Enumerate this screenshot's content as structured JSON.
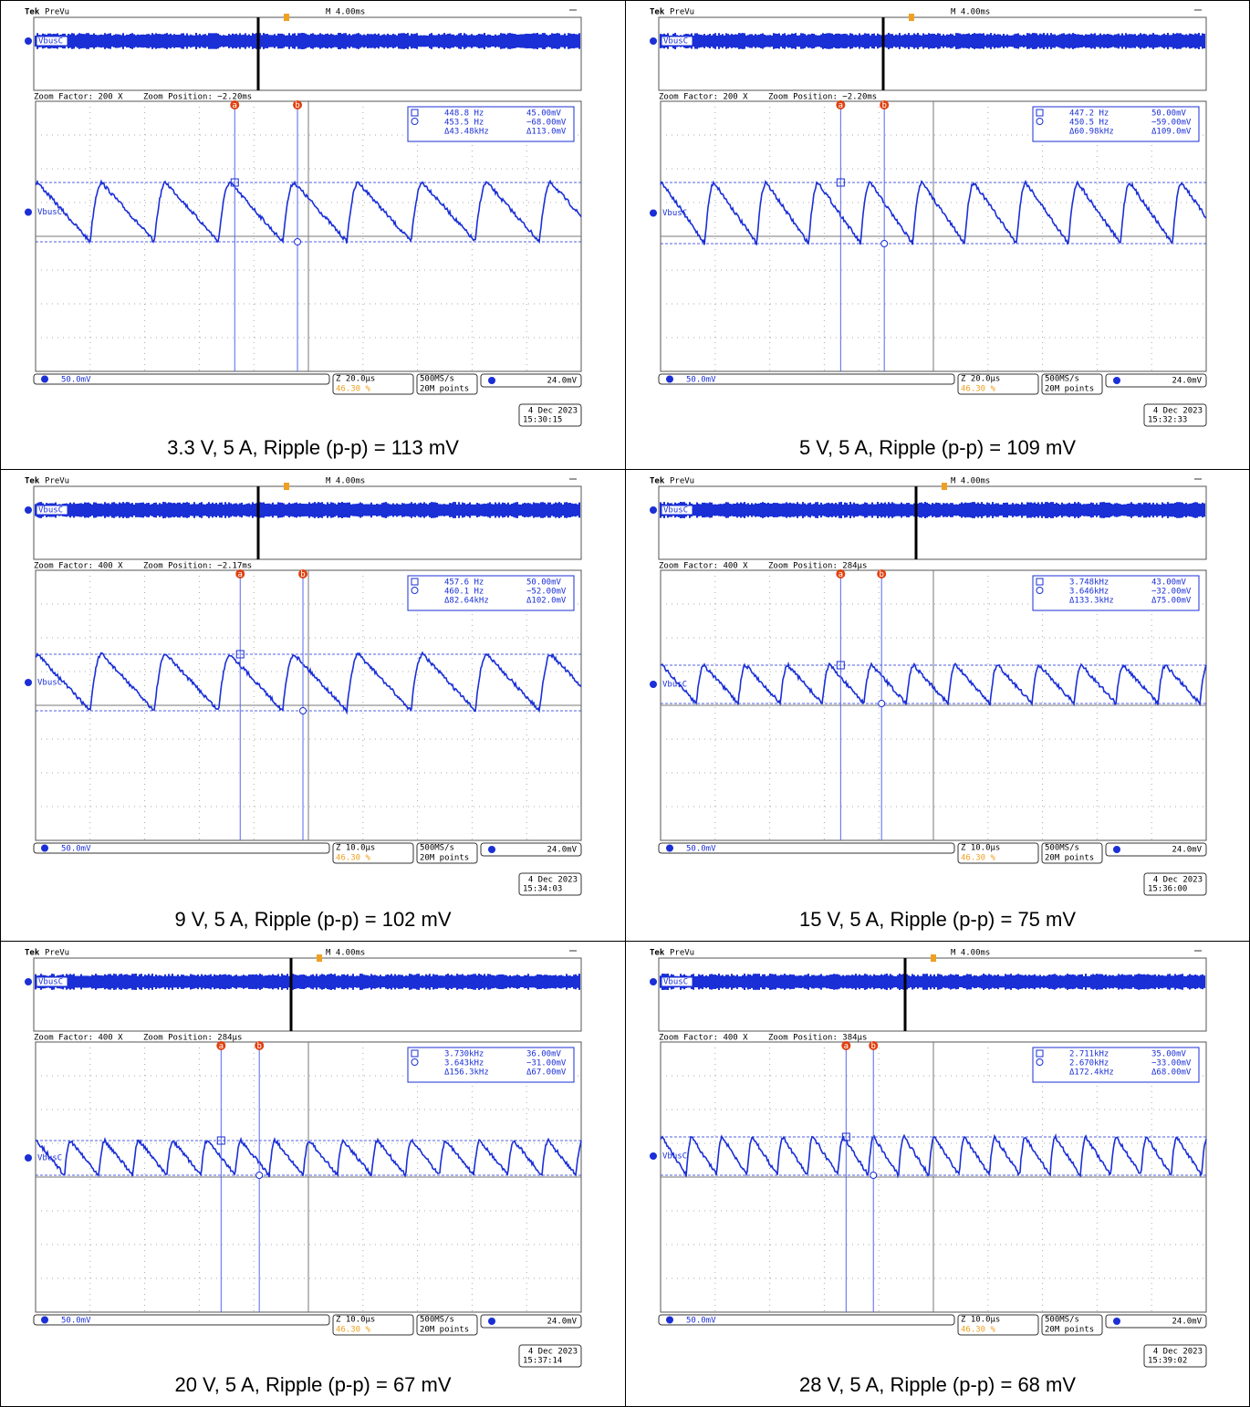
{
  "panels": [
    {
      "brand": "Tek",
      "mode": "PreVu",
      "timebase": "M 4.00ms",
      "channel": "VbusC",
      "zoom_factor": "Zoom Factor: 200 X",
      "zoom_position": "Zoom Position: −2.20ms",
      "cursor_a": {
        "label": "a",
        "freq": "448.8 Hz",
        "volt": "45.00mV"
      },
      "cursor_b": {
        "label": "b",
        "freq": "453.5 Hz",
        "volt": "−68.00mV"
      },
      "delta": {
        "freq": "Δ43.48kHz",
        "volt": "Δ113.0mV"
      },
      "scale": "50.0mV",
      "zoom_scale": "Z 20.0µs",
      "trigger_pos": "46.30 %",
      "sample_rate": "500MS/s",
      "record": "20M points",
      "trigger_level": "24.0mV",
      "date": "4 Dec 2023",
      "time": "15:30:15",
      "caption": "3.3 V, 5 A, Ripple (p-p) = 113 mV"
    },
    {
      "brand": "Tek",
      "mode": "PreVu",
      "timebase": "M 4.00ms",
      "channel": "VbusC",
      "zoom_factor": "Zoom Factor: 200 X",
      "zoom_position": "Zoom Position: −2.20ms",
      "cursor_a": {
        "label": "a",
        "freq": "447.2 Hz",
        "volt": "50.00mV"
      },
      "cursor_b": {
        "label": "b",
        "freq": "450.5 Hz",
        "volt": "−59.00mV"
      },
      "delta": {
        "freq": "Δ60.98kHz",
        "volt": "Δ109.0mV"
      },
      "scale": "50.0mV",
      "zoom_scale": "Z 20.0µs",
      "trigger_pos": "46.30 %",
      "sample_rate": "500MS/s",
      "record": "20M points",
      "trigger_level": "24.0mV",
      "date": "4 Dec 2023",
      "time": "15:32:33",
      "caption": "5 V, 5 A, Ripple (p-p) = 109 mV"
    },
    {
      "brand": "Tek",
      "mode": "PreVu",
      "timebase": "M 4.00ms",
      "channel": "VbusC",
      "zoom_factor": "Zoom Factor: 400 X",
      "zoom_position": "Zoom Position: −2.17ms",
      "cursor_a": {
        "label": "a",
        "freq": "457.6 Hz",
        "volt": "50.00mV"
      },
      "cursor_b": {
        "label": "b",
        "freq": "460.1 Hz",
        "volt": "−52.00mV"
      },
      "delta": {
        "freq": "Δ82.64kHz",
        "volt": "Δ102.0mV"
      },
      "scale": "50.0mV",
      "zoom_scale": "Z 10.0µs",
      "trigger_pos": "46.30 %",
      "sample_rate": "500MS/s",
      "record": "20M points",
      "trigger_level": "24.0mV",
      "date": "4 Dec 2023",
      "time": "15:34:03",
      "caption": "9 V, 5 A, Ripple (p-p) = 102 mV"
    },
    {
      "brand": "Tek",
      "mode": "PreVu",
      "timebase": "M 4.00ms",
      "channel": "VbusC",
      "zoom_factor": "Zoom Factor: 400 X",
      "zoom_position": "Zoom Position: 284µs",
      "cursor_a": {
        "label": "a",
        "freq": "3.748kHz",
        "volt": "43.00mV"
      },
      "cursor_b": {
        "label": "b",
        "freq": "3.646kHz",
        "volt": "−32.00mV"
      },
      "delta": {
        "freq": "Δ133.3kHz",
        "volt": "Δ75.00mV"
      },
      "scale": "50.0mV",
      "zoom_scale": "Z 10.0µs",
      "trigger_pos": "46.30 %",
      "sample_rate": "500MS/s",
      "record": "20M points",
      "trigger_level": "24.0mV",
      "date": "4 Dec 2023",
      "time": "15:36:00",
      "caption": "15 V, 5 A, Ripple (p-p) = 75 mV"
    },
    {
      "brand": "Tek",
      "mode": "PreVu",
      "timebase": "M 4.00ms",
      "channel": "VbusC",
      "zoom_factor": "Zoom Factor: 400 X",
      "zoom_position": "Zoom Position: 284µs",
      "cursor_a": {
        "label": "a",
        "freq": "3.730kHz",
        "volt": "36.00mV"
      },
      "cursor_b": {
        "label": "b",
        "freq": "3.643kHz",
        "volt": "−31.00mV"
      },
      "delta": {
        "freq": "Δ156.3kHz",
        "volt": "Δ67.00mV"
      },
      "scale": "50.0mV",
      "zoom_scale": "Z 10.0µs",
      "trigger_pos": "46.30 %",
      "sample_rate": "500MS/s",
      "record": "20M points",
      "trigger_level": "24.0mV",
      "date": "4 Dec 2023",
      "time": "15:37:14",
      "caption": "20 V, 5 A, Ripple (p-p) = 67 mV"
    },
    {
      "brand": "Tek",
      "mode": "PreVu",
      "timebase": "M 4.00ms",
      "channel": "VbusC",
      "zoom_factor": "Zoom Factor: 400 X",
      "zoom_position": "Zoom Position: 384µs",
      "cursor_a": {
        "label": "a",
        "freq": "2.711kHz",
        "volt": "35.00mV"
      },
      "cursor_b": {
        "label": "b",
        "freq": "2.670kHz",
        "volt": "−33.00mV"
      },
      "delta": {
        "freq": "Δ172.4kHz",
        "volt": "Δ68.00mV"
      },
      "scale": "50.0mV",
      "zoom_scale": "Z 10.0µs",
      "trigger_pos": "46.30 %",
      "sample_rate": "500MS/s",
      "record": "20M points",
      "trigger_level": "24.0mV",
      "date": "4 Dec 2023",
      "time": "15:39:02",
      "caption": "28 V, 5 A, Ripple (p-p) = 68 mV"
    }
  ]
}
